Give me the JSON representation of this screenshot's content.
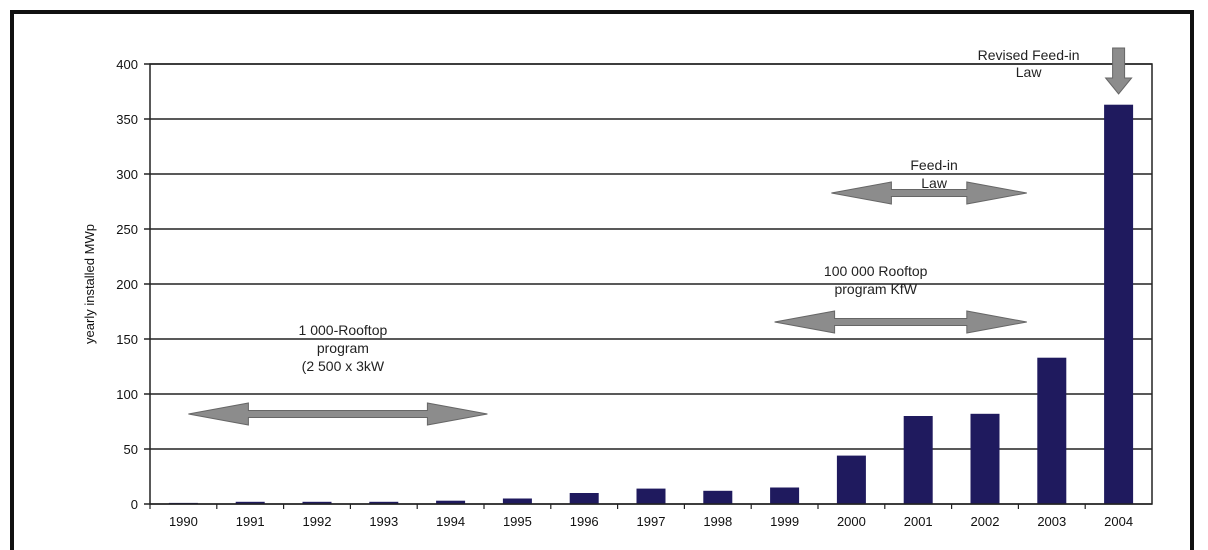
{
  "chart_data": {
    "type": "bar",
    "title": "",
    "xlabel": "",
    "ylabel": "yearly installed MWp",
    "ylim": [
      0,
      400
    ],
    "yticks": [
      0,
      50,
      100,
      150,
      200,
      250,
      300,
      350,
      400
    ],
    "grid": true,
    "bar_color": "#1f1a5e",
    "arrow_color": "#8c8c8c",
    "categories": [
      "1990",
      "1991",
      "1992",
      "1993",
      "1994",
      "1995",
      "1996",
      "1997",
      "1998",
      "1999",
      "2000",
      "2001",
      "2002",
      "2003",
      "2004"
    ],
    "values": [
      1,
      2,
      2,
      2,
      3,
      5,
      10,
      14,
      12,
      15,
      44,
      80,
      82,
      133,
      363
    ],
    "annotations": [
      {
        "id": "rooftop1000",
        "lines": [
          "1 000-Rooftop",
          "program",
          "(2 500 x 3kW"
        ],
        "start": "1990",
        "end": "1995"
      },
      {
        "id": "rooftop100000",
        "lines": [
          "100 000 Rooftop",
          "program KfW"
        ],
        "start": "1999",
        "end": "2003"
      },
      {
        "id": "feedin",
        "lines": [
          "Feed-in",
          "Law"
        ],
        "start": "2000",
        "end": "2003"
      },
      {
        "id": "revised",
        "lines": [
          "Revised Feed-in",
          "Law"
        ],
        "year": "2004"
      }
    ]
  }
}
